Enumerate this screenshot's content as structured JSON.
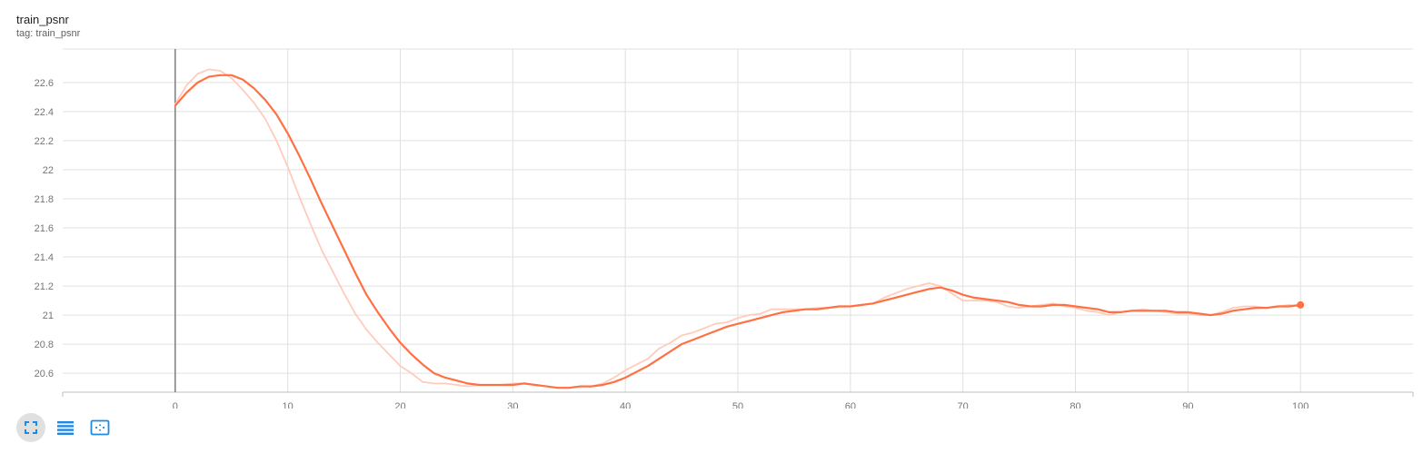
{
  "header": {
    "title": "train_psnr",
    "tag": "tag: train_psnr"
  },
  "toolbar": {
    "buttons": [
      {
        "icon": "fullscreen-icon",
        "active": true
      },
      {
        "icon": "list-icon",
        "active": false
      },
      {
        "icon": "fit-domain-icon",
        "active": false
      }
    ],
    "accent_color": "#1e88e5"
  },
  "chart_data": {
    "type": "line",
    "title": "train_psnr",
    "xlabel": "",
    "ylabel": "",
    "xlim": [
      -10,
      110
    ],
    "ylim": [
      20.47,
      22.83
    ],
    "xticks": [
      0,
      10,
      20,
      30,
      40,
      50,
      60,
      70,
      80,
      90,
      100
    ],
    "yticks": [
      20.6,
      20.8,
      21,
      21.2,
      21.4,
      21.6,
      21.8,
      22,
      22.2,
      22.4,
      22.6
    ],
    "grid": true,
    "colors": {
      "smoothed": "#ff7043",
      "raw": "#ffccbc",
      "grid": "#e0e0e0",
      "axis": "#616161"
    },
    "series": [
      {
        "role": "raw",
        "x": [
          0,
          1,
          2,
          3,
          4,
          5,
          6,
          7,
          8,
          9,
          10,
          11,
          12,
          13,
          14,
          15,
          16,
          17,
          18,
          19,
          20,
          21,
          22,
          23,
          24,
          25,
          26,
          27,
          28,
          29,
          30,
          31,
          32,
          33,
          34,
          35,
          36,
          37,
          38,
          39,
          40,
          41,
          42,
          43,
          44,
          45,
          46,
          47,
          48,
          49,
          50,
          51,
          52,
          53,
          54,
          55,
          56,
          57,
          58,
          59,
          60,
          61,
          62,
          63,
          64,
          65,
          66,
          67,
          68,
          69,
          70,
          71,
          72,
          73,
          74,
          75,
          76,
          77,
          78,
          79,
          80,
          81,
          82,
          83,
          84,
          85,
          86,
          87,
          88,
          89,
          90,
          91,
          92,
          93,
          94,
          95,
          96,
          97,
          98,
          99,
          100
        ],
        "values": [
          22.45,
          22.58,
          22.66,
          22.69,
          22.68,
          22.63,
          22.55,
          22.46,
          22.35,
          22.2,
          22.02,
          21.82,
          21.63,
          21.45,
          21.3,
          21.15,
          21.01,
          20.9,
          20.81,
          20.73,
          20.65,
          20.6,
          20.54,
          20.53,
          20.53,
          20.52,
          20.51,
          20.52,
          20.52,
          20.52,
          20.53,
          20.53,
          20.52,
          20.51,
          20.5,
          20.5,
          20.51,
          20.51,
          20.53,
          20.57,
          20.62,
          20.66,
          20.7,
          20.77,
          20.81,
          20.86,
          20.88,
          20.91,
          20.94,
          20.95,
          20.98,
          21.0,
          21.01,
          21.04,
          21.04,
          21.04,
          21.04,
          21.05,
          21.05,
          21.06,
          21.06,
          21.07,
          21.08,
          21.12,
          21.15,
          21.18,
          21.2,
          21.22,
          21.2,
          21.15,
          21.1,
          21.1,
          21.1,
          21.09,
          21.06,
          21.05,
          21.06,
          21.07,
          21.08,
          21.06,
          21.05,
          21.03,
          21.02,
          21.0,
          21.02,
          21.03,
          21.04,
          21.03,
          21.02,
          21.01,
          21.01,
          21.0,
          21.0,
          21.02,
          21.05,
          21.06,
          21.06,
          21.05,
          21.06,
          21.07,
          21.06
        ]
      },
      {
        "role": "smoothed",
        "x": [
          0,
          1,
          2,
          3,
          4,
          5,
          6,
          7,
          8,
          9,
          10,
          11,
          12,
          13,
          14,
          15,
          16,
          17,
          18,
          19,
          20,
          21,
          22,
          23,
          24,
          25,
          26,
          27,
          28,
          29,
          30,
          31,
          32,
          33,
          34,
          35,
          36,
          37,
          38,
          39,
          40,
          41,
          42,
          43,
          44,
          45,
          46,
          47,
          48,
          49,
          50,
          51,
          52,
          53,
          54,
          55,
          56,
          57,
          58,
          59,
          60,
          61,
          62,
          63,
          64,
          65,
          66,
          67,
          68,
          69,
          70,
          71,
          72,
          73,
          74,
          75,
          76,
          77,
          78,
          79,
          80,
          81,
          82,
          83,
          84,
          85,
          86,
          87,
          88,
          89,
          90,
          91,
          92,
          93,
          94,
          95,
          96,
          97,
          98,
          99,
          100
        ],
        "values": [
          22.44,
          22.53,
          22.6,
          22.64,
          22.65,
          22.65,
          22.62,
          22.56,
          22.48,
          22.38,
          22.25,
          22.1,
          21.94,
          21.77,
          21.61,
          21.45,
          21.29,
          21.14,
          21.02,
          20.91,
          20.81,
          20.73,
          20.66,
          20.6,
          20.57,
          20.55,
          20.53,
          20.52,
          20.52,
          20.52,
          20.52,
          20.53,
          20.52,
          20.51,
          20.5,
          20.5,
          20.51,
          20.51,
          20.52,
          20.54,
          20.57,
          20.61,
          20.65,
          20.7,
          20.75,
          20.8,
          20.83,
          20.86,
          20.89,
          20.92,
          20.94,
          20.96,
          20.98,
          21.0,
          21.02,
          21.03,
          21.04,
          21.04,
          21.05,
          21.06,
          21.06,
          21.07,
          21.08,
          21.1,
          21.12,
          21.14,
          21.16,
          21.18,
          21.19,
          21.17,
          21.14,
          21.12,
          21.11,
          21.1,
          21.09,
          21.07,
          21.06,
          21.06,
          21.07,
          21.07,
          21.06,
          21.05,
          21.04,
          21.02,
          21.02,
          21.03,
          21.03,
          21.03,
          21.03,
          21.02,
          21.02,
          21.01,
          21.0,
          21.01,
          21.03,
          21.04,
          21.05,
          21.05,
          21.06,
          21.06,
          21.07
        ]
      }
    ]
  }
}
